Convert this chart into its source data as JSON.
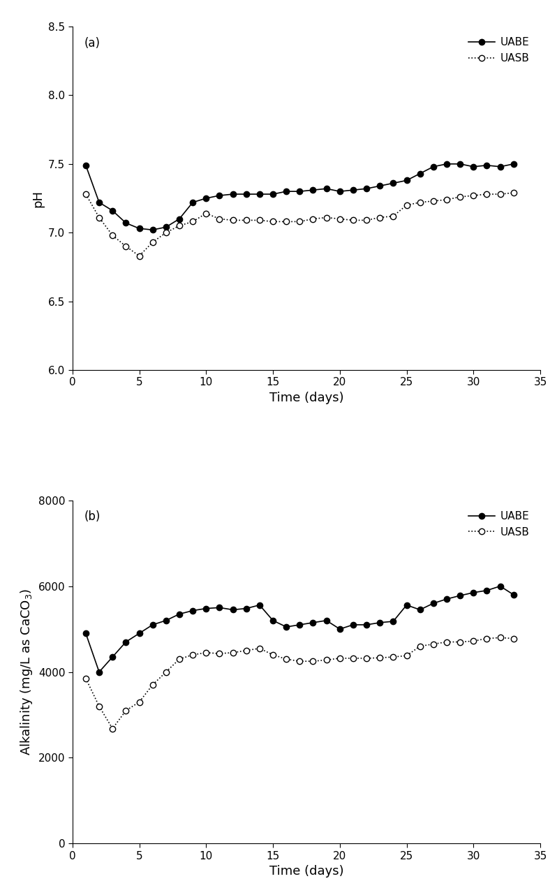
{
  "ph_uabe_x": [
    1,
    2,
    3,
    4,
    5,
    6,
    7,
    8,
    9,
    10,
    11,
    12,
    13,
    14,
    15,
    16,
    17,
    18,
    19,
    20,
    21,
    22,
    23,
    24,
    25,
    26,
    27,
    28,
    29,
    30,
    31,
    32,
    33
  ],
  "ph_uabe_y": [
    7.49,
    7.22,
    7.16,
    7.07,
    7.03,
    7.02,
    7.04,
    7.1,
    7.22,
    7.25,
    7.27,
    7.28,
    7.28,
    7.28,
    7.28,
    7.3,
    7.3,
    7.31,
    7.32,
    7.3,
    7.31,
    7.32,
    7.34,
    7.36,
    7.38,
    7.43,
    7.48,
    7.5,
    7.5,
    7.48,
    7.49,
    7.48,
    7.5
  ],
  "ph_uasb_x": [
    1,
    2,
    3,
    4,
    5,
    6,
    7,
    8,
    9,
    10,
    11,
    12,
    13,
    14,
    15,
    16,
    17,
    18,
    19,
    20,
    21,
    22,
    23,
    24,
    25,
    26,
    27,
    28,
    29,
    30,
    31,
    32,
    33
  ],
  "ph_uasb_y": [
    7.28,
    7.11,
    6.98,
    6.9,
    6.83,
    6.93,
    7.0,
    7.05,
    7.08,
    7.14,
    7.1,
    7.09,
    7.09,
    7.09,
    7.08,
    7.08,
    7.08,
    7.1,
    7.11,
    7.1,
    7.09,
    7.09,
    7.11,
    7.12,
    7.2,
    7.22,
    7.23,
    7.24,
    7.26,
    7.27,
    7.28,
    7.28,
    7.29
  ],
  "alk_uabe_x": [
    1,
    2,
    3,
    4,
    5,
    6,
    7,
    8,
    9,
    10,
    11,
    12,
    13,
    14,
    15,
    16,
    17,
    18,
    19,
    20,
    21,
    22,
    23,
    24,
    25,
    26,
    27,
    28,
    29,
    30,
    31,
    32,
    33
  ],
  "alk_uabe_y": [
    4900,
    4000,
    4350,
    4700,
    4900,
    5100,
    5200,
    5350,
    5430,
    5480,
    5500,
    5450,
    5480,
    5560,
    5200,
    5050,
    5100,
    5150,
    5200,
    5000,
    5100,
    5100,
    5150,
    5180,
    5560,
    5450,
    5600,
    5700,
    5780,
    5850,
    5900,
    6000,
    5800
  ],
  "alk_uasb_x": [
    1,
    2,
    3,
    4,
    5,
    6,
    7,
    8,
    9,
    10,
    11,
    12,
    13,
    14,
    15,
    16,
    17,
    18,
    19,
    20,
    21,
    22,
    23,
    24,
    25,
    26,
    27,
    28,
    29,
    30,
    31,
    32,
    33
  ],
  "alk_uasb_y": [
    3850,
    3200,
    2680,
    3100,
    3300,
    3700,
    4000,
    4300,
    4400,
    4450,
    4430,
    4450,
    4500,
    4550,
    4400,
    4300,
    4250,
    4250,
    4280,
    4320,
    4320,
    4320,
    4330,
    4350,
    4380,
    4600,
    4650,
    4700,
    4700,
    4720,
    4780,
    4800,
    4780
  ],
  "ph_ylim": [
    6.0,
    8.5
  ],
  "ph_yticks": [
    6.0,
    6.5,
    7.0,
    7.5,
    8.0,
    8.5
  ],
  "alk_ylim": [
    0,
    8000
  ],
  "alk_yticks": [
    0,
    2000,
    4000,
    6000,
    8000
  ],
  "xlim": [
    0,
    35
  ],
  "xticks": [
    0,
    5,
    10,
    15,
    20,
    25,
    30,
    35
  ],
  "ph_ylabel": "pH",
  "alk_ylabel": "Alkalinity (mg/L as CaCO$_3$)",
  "xlabel": "Time (days)",
  "label_uabe": "UABE",
  "label_uasb": "UASB",
  "panel_a_label": "(a)",
  "panel_b_label": "(b)",
  "line_color": "#000000",
  "marker_size": 6,
  "line_width": 1.2,
  "fontsize_label": 13,
  "fontsize_tick": 11,
  "fontsize_legend": 11,
  "fontsize_panel": 12
}
